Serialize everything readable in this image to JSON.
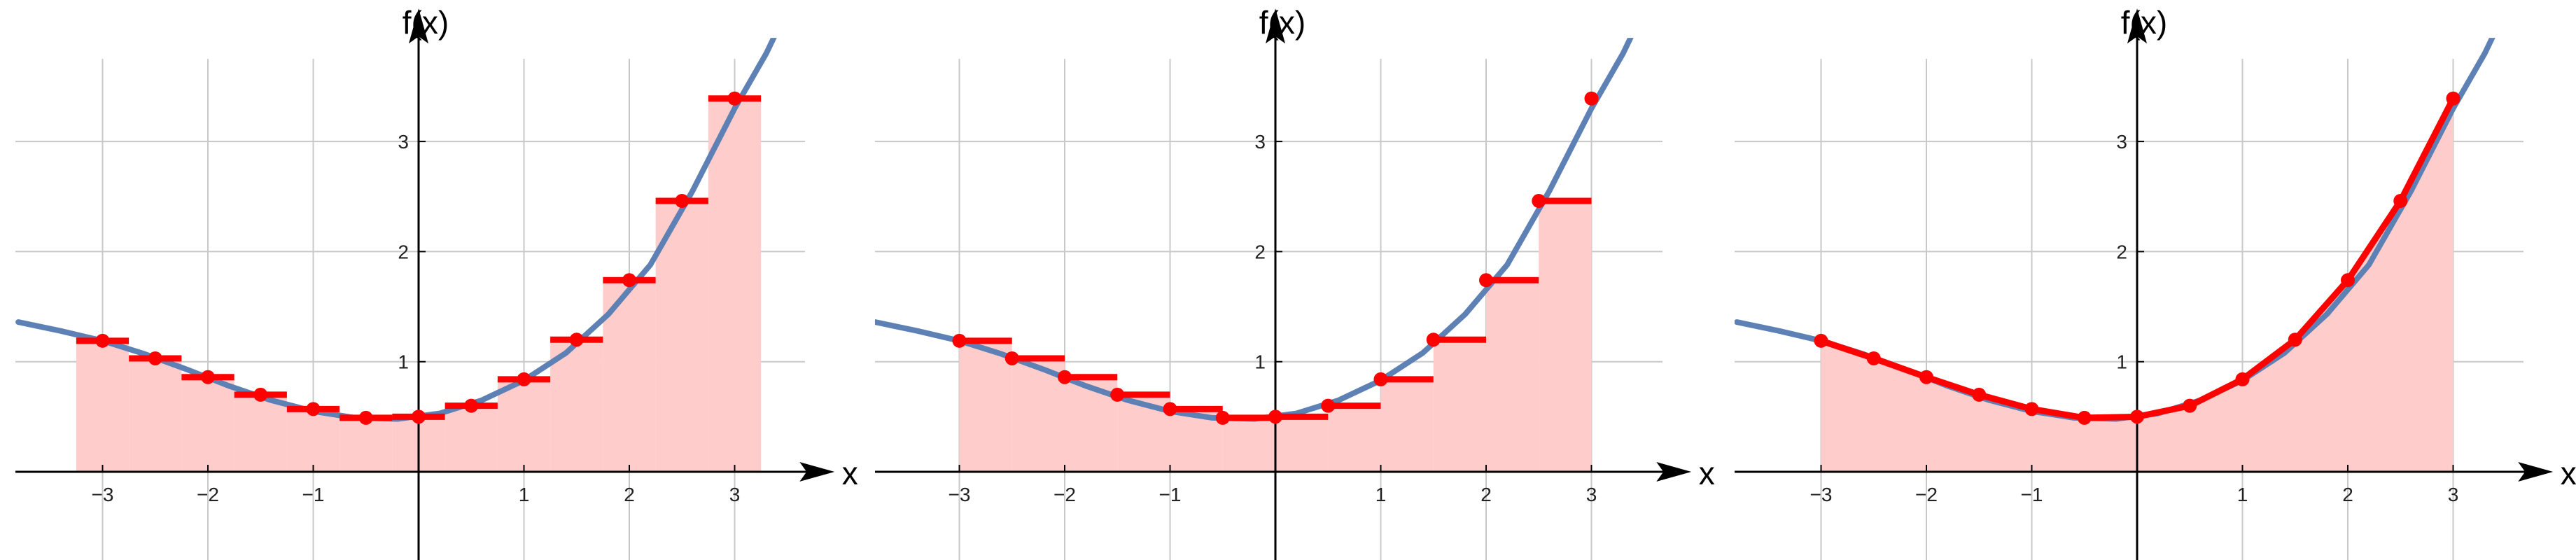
{
  "colors": {
    "curve": "#5E81B5",
    "marks": "#FF0000",
    "fill": "#FFCCCC",
    "grid": "#C8C8C8",
    "axis": "#000000"
  },
  "chart_data": [
    {
      "type": "line",
      "variant": "midpoint-riemann-sum",
      "title": "",
      "xlabel": "x",
      "ylabel": "f(x)",
      "xlim": [
        -3.8,
        3.55
      ],
      "ylim": [
        -1.3,
        3.75
      ],
      "xticks": [
        -3,
        -2,
        -1,
        1,
        2,
        3
      ],
      "xtick_labels": [
        "−3",
        "−2",
        "−1",
        "1",
        "2",
        "3"
      ],
      "yticks": [
        1,
        2,
        3
      ],
      "ytick_labels": [
        "1",
        "2",
        "3"
      ],
      "grid": true,
      "curve": {
        "x": [
          -3.8,
          -3.4,
          -3.0,
          -2.6,
          -2.2,
          -1.8,
          -1.4,
          -1.0,
          -0.6,
          -0.2,
          0.2,
          0.6,
          1.0,
          1.4,
          1.8,
          2.2,
          2.6,
          3.0,
          3.3,
          3.55
        ],
        "y": [
          1.36,
          1.28,
          1.19,
          1.07,
          0.93,
          0.78,
          0.65,
          0.55,
          0.49,
          0.48,
          0.53,
          0.65,
          0.83,
          1.08,
          1.43,
          1.88,
          2.55,
          3.3,
          3.8,
          4.3
        ]
      },
      "points": {
        "x": [
          -3.0,
          -2.5,
          -2.0,
          -1.5,
          -1.0,
          -0.5,
          0.0,
          0.5,
          1.0,
          1.5,
          2.0,
          2.5,
          3.0
        ],
        "y": [
          1.19,
          1.03,
          0.86,
          0.7,
          0.57,
          0.49,
          0.5,
          0.6,
          0.84,
          1.2,
          1.74,
          2.46,
          3.39
        ]
      },
      "bars": {
        "left": [
          -3.25,
          -2.75,
          -2.25,
          -1.75,
          -1.25,
          -0.75,
          -0.25,
          0.25,
          0.75,
          1.25,
          1.75,
          2.25,
          2.75
        ],
        "right": [
          -2.75,
          -2.25,
          -1.75,
          -1.25,
          -0.75,
          -0.25,
          0.25,
          0.75,
          1.25,
          1.75,
          2.25,
          2.75,
          3.25
        ]
      }
    },
    {
      "type": "line",
      "variant": "left-riemann-sum",
      "title": "",
      "xlabel": "x",
      "ylabel": "f(x)",
      "xlim": [
        -3.8,
        3.55
      ],
      "ylim": [
        -1.3,
        3.75
      ],
      "xticks": [
        -3,
        -2,
        -1,
        1,
        2,
        3
      ],
      "xtick_labels": [
        "−3",
        "−2",
        "−1",
        "1",
        "2",
        "3"
      ],
      "yticks": [
        1,
        2,
        3
      ],
      "ytick_labels": [
        "1",
        "2",
        "3"
      ],
      "grid": true,
      "curve": {
        "x": [
          -3.8,
          -3.4,
          -3.0,
          -2.6,
          -2.2,
          -1.8,
          -1.4,
          -1.0,
          -0.6,
          -0.2,
          0.2,
          0.6,
          1.0,
          1.4,
          1.8,
          2.2,
          2.6,
          3.0,
          3.3,
          3.55
        ],
        "y": [
          1.36,
          1.28,
          1.19,
          1.07,
          0.93,
          0.78,
          0.65,
          0.55,
          0.49,
          0.48,
          0.53,
          0.65,
          0.83,
          1.08,
          1.43,
          1.88,
          2.55,
          3.3,
          3.8,
          4.3
        ]
      },
      "points": {
        "x": [
          -3.0,
          -2.5,
          -2.0,
          -1.5,
          -1.0,
          -0.5,
          0.0,
          0.5,
          1.0,
          1.5,
          2.0,
          2.5,
          3.0
        ],
        "y": [
          1.19,
          1.03,
          0.86,
          0.7,
          0.57,
          0.49,
          0.5,
          0.6,
          0.84,
          1.2,
          1.74,
          2.46,
          3.39
        ]
      },
      "bars": {
        "left": [
          -3.0,
          -2.5,
          -2.0,
          -1.5,
          -1.0,
          -0.5,
          0.0,
          0.5,
          1.0,
          1.5,
          2.0,
          2.5,
          3.0
        ],
        "right": [
          -2.5,
          -2.0,
          -1.5,
          -1.0,
          -0.5,
          0.0,
          0.5,
          1.0,
          1.5,
          2.0,
          2.5,
          3.0,
          3.0
        ]
      }
    },
    {
      "type": "line",
      "variant": "trapezoid",
      "title": "",
      "xlabel": "x",
      "ylabel": "f(x)",
      "xlim": [
        -3.8,
        3.55
      ],
      "ylim": [
        -1.3,
        3.75
      ],
      "xticks": [
        -3,
        -2,
        -1,
        1,
        2,
        3
      ],
      "xtick_labels": [
        "−3",
        "−2",
        "−1",
        "1",
        "2",
        "3"
      ],
      "yticks": [
        1,
        2,
        3
      ],
      "ytick_labels": [
        "1",
        "2",
        "3"
      ],
      "grid": true,
      "curve": {
        "x": [
          -3.8,
          -3.4,
          -3.0,
          -2.6,
          -2.2,
          -1.8,
          -1.4,
          -1.0,
          -0.6,
          -0.2,
          0.2,
          0.6,
          1.0,
          1.4,
          1.8,
          2.2,
          2.6,
          3.0,
          3.3,
          3.55
        ],
        "y": [
          1.36,
          1.28,
          1.19,
          1.07,
          0.93,
          0.78,
          0.65,
          0.55,
          0.49,
          0.48,
          0.53,
          0.65,
          0.83,
          1.08,
          1.43,
          1.88,
          2.55,
          3.3,
          3.8,
          4.3
        ]
      },
      "points": {
        "x": [
          -3.0,
          -2.5,
          -2.0,
          -1.5,
          -1.0,
          -0.5,
          0.0,
          0.5,
          1.0,
          1.5,
          2.0,
          2.5,
          3.0
        ],
        "y": [
          1.19,
          1.03,
          0.86,
          0.7,
          0.57,
          0.49,
          0.5,
          0.6,
          0.84,
          1.2,
          1.74,
          2.46,
          3.39
        ]
      }
    }
  ]
}
